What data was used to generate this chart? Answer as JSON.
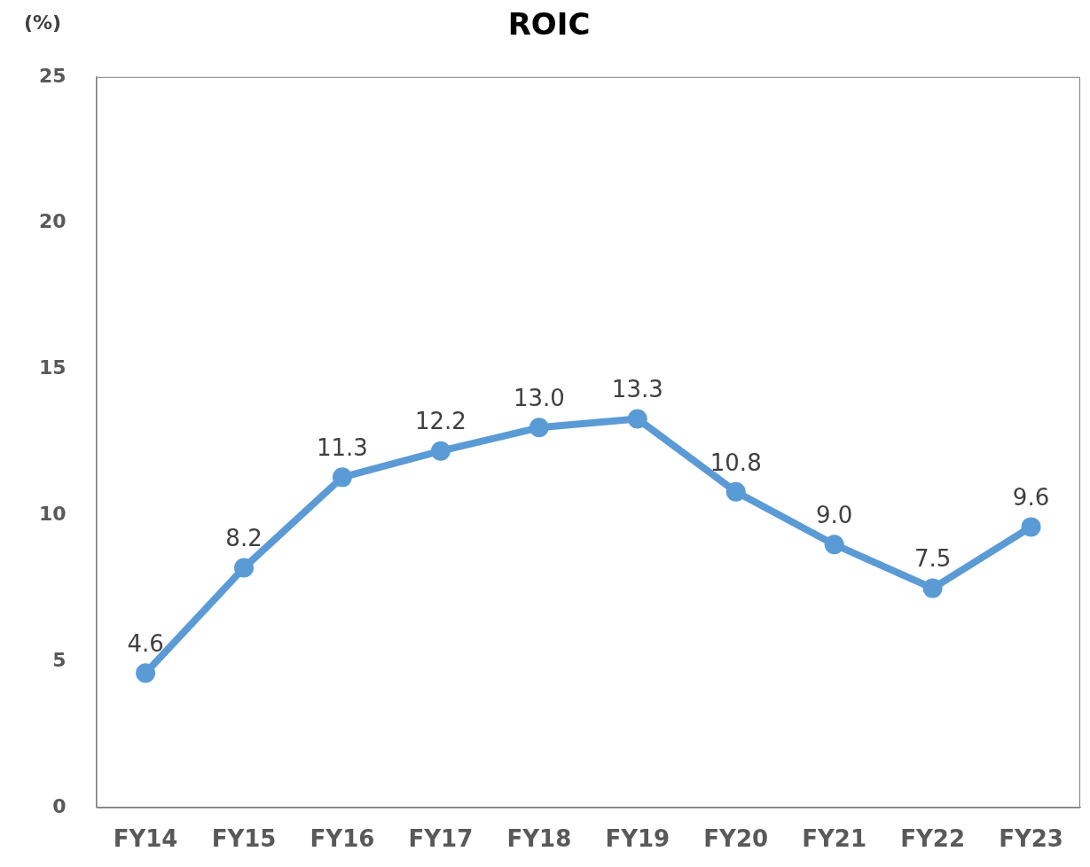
{
  "chart_data": {
    "type": "line",
    "title": "ROIC",
    "ylabel": "(%)",
    "categories": [
      "FY14",
      "FY15",
      "FY16",
      "FY17",
      "FY18",
      "FY19",
      "FY20",
      "FY21",
      "FY22",
      "FY23"
    ],
    "series": [
      {
        "color": "#5b9bd5",
        "values": [
          4.6,
          8.2,
          11.3,
          12.2,
          13.0,
          13.3,
          10.8,
          9.0,
          7.5,
          9.6
        ],
        "value_labels": [
          "4.6",
          "8.2",
          "11.3",
          "12.2",
          "13.0",
          "13.3",
          "10.8",
          "9.0",
          "7.5",
          "9.6"
        ]
      }
    ],
    "ylim": [
      0,
      25
    ],
    "yticks": [
      0,
      5,
      10,
      15,
      20,
      25
    ],
    "grid": false,
    "legend": false,
    "marker": "circle",
    "line_style": "solid"
  }
}
